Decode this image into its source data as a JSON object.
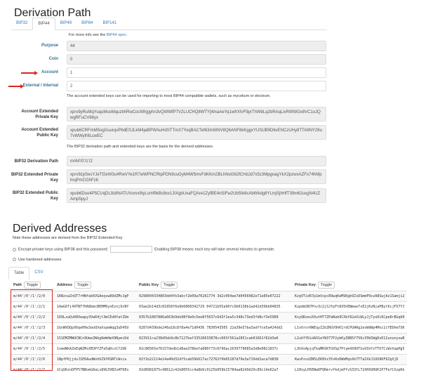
{
  "derivation": {
    "title": "Derivation Path",
    "tabs": [
      "BIP32",
      "BIP44",
      "BIP49",
      "BIP84",
      "BIP141"
    ],
    "active_tab": "BIP44",
    "info_prefix": "For more info see the ",
    "info_link": "BIP44 spec",
    "info_suffix": ".",
    "purpose_label": "Purpose",
    "purpose": "44",
    "coin_label": "Coin",
    "coin": "0",
    "account_label": "Account",
    "account": "1",
    "external_label": "External / Internal",
    "external": "2",
    "account_note": "The account extended keys can be used for importing to most BIP44 compatible wallets, such as mycelium or electrum.",
    "acct_priv_label": "Account Extended Private Key",
    "acct_priv": "xprv9yRuMqYuquMceMquzbhRwCocWhjgyhn3vQWWfP7V2LUCHQ8WTYjWxaAeYq1wfrXfvF9prThWbLq2bRAqLixRWWGx8VC1oJQwgRFuCV66yx",
    "acct_pub_label": "Account Extended Public Key",
    "acct_pub": "xpub6CRFmM5ogGuurqvP6dESJLkM4jaBPWAuHdSTTmX7YoqBACTef63mWNV8Q6ANF8kKggxYUSUB9D6vENCzUHy8TTA9NY28u7vWWyfr8LcwEC",
    "bip32_note": "The BIP32 derivation path and extended keys are the basis for the derived addresses.",
    "bip32_path_label": "BIP32 Derivation Path",
    "bip32_path": "m/44'/0'/1'/2",
    "bip32_priv_label": "BIP32 Extended Private Key",
    "bip32_priv": "xprv9zpSesYJeTf2eW3u4RwVYe1R7wWPNCRtpPDN9cuGyM4W5mvFdKKm2BLhNoG62fCHdJd7x5z3MpgxagYkX2pzwxAZFo74hMphrqPmCGhFz6",
    "bip32_pub_label": "BIP32 Extended Public Key",
    "bip32_pub": "xpub6Doo4P5CUqDL9z8NATUVumx9tyLsmf9kBc8xx1JtXgbUxaFQAre1ZyfBE4nSiFw2Ub5fe8cAbWkdg8YLmjSjhHfT39m62uxgN4UZAmp5pyJ"
  },
  "derived": {
    "title": "Derived Addresses",
    "note": "Note these addresses are derived from the BIP32 Extended Key",
    "encrypt_label": "Encrypt private keys using BIP38 and this password:",
    "encrypt_note": "Enabling BIP38 means each key will take several minutes to generate.",
    "hardened_label": "Use hardened addresses",
    "tabs": [
      "Table",
      "CSV"
    ],
    "active_tab": "Table",
    "columns": [
      "Path",
      "Address",
      "Public Key",
      "Private Key"
    ],
    "toggle": "Toggle",
    "rows": [
      [
        "m/44'/0'/1'/2/0",
        "1KNzcwZnQT7rHWfak6VGAeqvw89dZMxJgP",
        "0298094334803dd4fb3abcf2b09a70281774 3d2c064ae7d0456982e71e85e07222",
        "KzgVTid67p1mVcpc89wqKeMSKgb9ZsDSmmP9szA8SwjAz1Samji2"
      ],
      [
        "m/44'/0'/1'/2/1",
        "1AwG6Tj49TNT7HA8bmcBEHM6ynEznj9cNY",
        "03ae2b14d3c81858f0a9b6808342729 04721b55a90fc9b0138b1ad42d39bb04835",
        "KzpdmSN7Pnv3c2jSJfpFt8X5hEWmwe7xE2jKzNjaPByt6cjFX7YJ"
      ],
      [
        "m/44'/0'/1'/2/2",
        "1D9LzaQvR8Vwapy3VwR4jt3mCEdAYatZUm",
        "0357b1887886a663b9de98f9e0c5ee8f5637c6d3f1ea5c348c73ed3fd8cf3e5989",
        "KxyQRzeoXXutHT7ZPaNak9CXbf82aViWLyJjTyoDi6Cpe8rBGqA9"
      ],
      [
        "m/44'/0'/1'/2/3",
        "1GnWXQQpX6qeH9w3aoQVaXspwWqg3uD45U",
        "0287d439bde246a18c8f8a4e71d0436 7830543505 22a39e57ba3adffce5a424dd2",
        "L1vUrorRWEqyZ2bZRGV9hK1rdCPUARg2exWdWp4Moi1cYEDhm7SK"
      ],
      [
        "m/44'/0'/1'/2/4",
        "151EMZMWUCNCn9UmeZWkg6mW4mX9NymiDd",
        "023911ca238d5bb9c8b7127baf33528633878cc603f561a2851cab01661f62d3e6",
        "L2uUfYDidAX1eYW377P2ybKyZ8B5f756c35W1WgDxD12ununyswR"
      ],
      [
        "m/44'/0'/1'/2/5",
        "1xmdWkAZeEqWZMsXEUPfZFa5qRczCf2UK",
        "02c86565e76157dedb1d8aa378befa880f73c6f96ac2639779685a3d8e0821837c",
        "L3hXoApjqTkaMRSKTG9Sp7Ptym4X9UTGvUShYzTTU7CcWsVapHg5"
      ],
      [
        "m/44'/0'/1'/2/6",
        "1NpfP6jjdvJ1E6AudWohUZ9fRSNTiWxiu",
        "02f1b22114e14a40d32df5cab59b617ac72762f9b65287d79e3a719dd2aca7d838",
        "KwsPzsdZN5LEK8Vz3YoRxDWkMqnXb7TTaIXkJ1UU9KF6ZqXjD"
      ],
      [
        "m/44'/0'/1'/2/7",
        "1CqSKznDFP57NBomG8aLv89G3VBZvAF6Eo",
        "02d8981875c48612c42b8055cc4a8b6c9125b059b15784aa82d9d29c89c14e62a7",
        "L1HoyLH5EWwDFQRmrvYkdjmPfvS33fL72XHXUHUK1P7FefCXzpKk"
      ]
    ]
  },
  "colors": {
    "accent": "#337ab7",
    "annotation": "#d9261c"
  }
}
